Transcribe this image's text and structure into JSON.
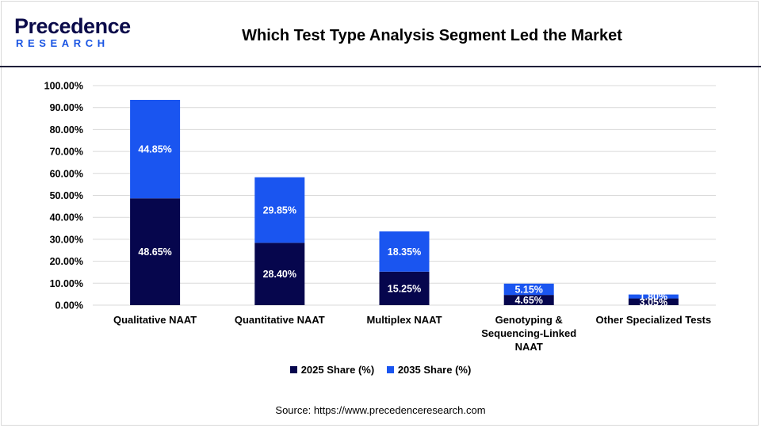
{
  "header": {
    "logo_word": "Precedence",
    "logo_sub": "RESEARCH",
    "title": "Which Test Type Analysis Segment Led the Market"
  },
  "colors": {
    "series_2025": "#06064d",
    "series_2035": "#1a55f0",
    "logo_primary": "#0b0b4a",
    "logo_accent": "#1a55e3"
  },
  "chart_data": {
    "type": "bar",
    "stacked": true,
    "categories": [
      [
        "Qualitative NAAT"
      ],
      [
        "Quantitative NAAT"
      ],
      [
        "Multiplex NAAT"
      ],
      [
        "Genotyping &",
        "Sequencing-Linked",
        "NAAT"
      ],
      [
        "Other Specialized Tests"
      ]
    ],
    "series": [
      {
        "name": "2025 Share (%)",
        "values": [
          48.65,
          28.4,
          15.25,
          4.65,
          3.05
        ],
        "labels": [
          "48.65%",
          "28.40%",
          "15.25%",
          "4.65%",
          "3.05%"
        ]
      },
      {
        "name": "2035 Share (%)",
        "values": [
          44.85,
          29.85,
          18.35,
          5.15,
          1.8
        ],
        "labels": [
          "44.85%",
          "29.85%",
          "18.35%",
          "5.15%",
          "1.80%"
        ]
      }
    ],
    "ylim": [
      0,
      100
    ],
    "yticks": [
      "0.00%",
      "10.00%",
      "20.00%",
      "30.00%",
      "40.00%",
      "50.00%",
      "60.00%",
      "70.00%",
      "80.00%",
      "90.00%",
      "100.00%"
    ],
    "grid": true,
    "legend_position": "bottom"
  },
  "legend": {
    "item1": "2025 Share (%)",
    "item2": "2035 Share (%)"
  },
  "footer": {
    "source": "Source: https://www.precedenceresearch.com"
  }
}
